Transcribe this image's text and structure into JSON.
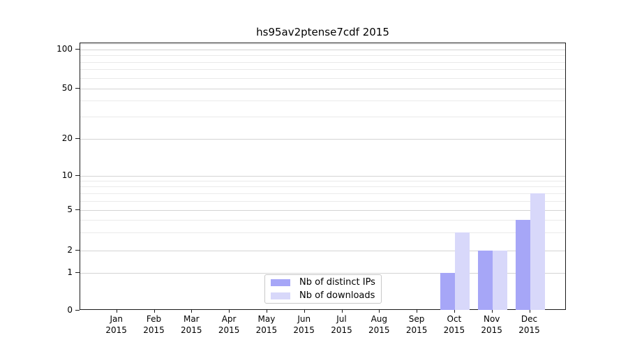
{
  "chart_data": {
    "type": "bar",
    "title": "hs95av2ptense7cdf 2015",
    "categories": [
      "Jan",
      "Feb",
      "Mar",
      "Apr",
      "May",
      "Jun",
      "Jul",
      "Aug",
      "Sep",
      "Oct",
      "Nov",
      "Dec"
    ],
    "year_label": "2015",
    "series": [
      {
        "name": "Nb of distinct IPs",
        "color": "#a6a6f7",
        "values": [
          0,
          0,
          0,
          0,
          0,
          0,
          0,
          0,
          0,
          1,
          2,
          4
        ]
      },
      {
        "name": "Nb of downloads",
        "color": "#d8d8fa",
        "values": [
          0,
          0,
          0,
          0,
          0,
          0,
          0,
          0,
          0,
          3,
          2,
          7
        ]
      }
    ],
    "xlabel": "",
    "ylabel": "",
    "y_axis": {
      "scale": "symlog-like",
      "ticks": [
        0,
        1,
        2,
        5,
        10,
        20,
        50,
        100
      ],
      "minor_gridlines": [
        3,
        4,
        6,
        7,
        8,
        9,
        30,
        40,
        60,
        70,
        80,
        90,
        110
      ],
      "ylim": [
        0,
        110
      ]
    },
    "grid": true,
    "legend_position": "lower center inside plot"
  },
  "colors": {
    "distinct_ips": "#a6a6f7",
    "downloads": "#d8d8fa",
    "grid_major": "#d4d4d4",
    "grid_minor": "#eaeaea",
    "spine": "#1a1a1a",
    "background": "#ffffff"
  }
}
